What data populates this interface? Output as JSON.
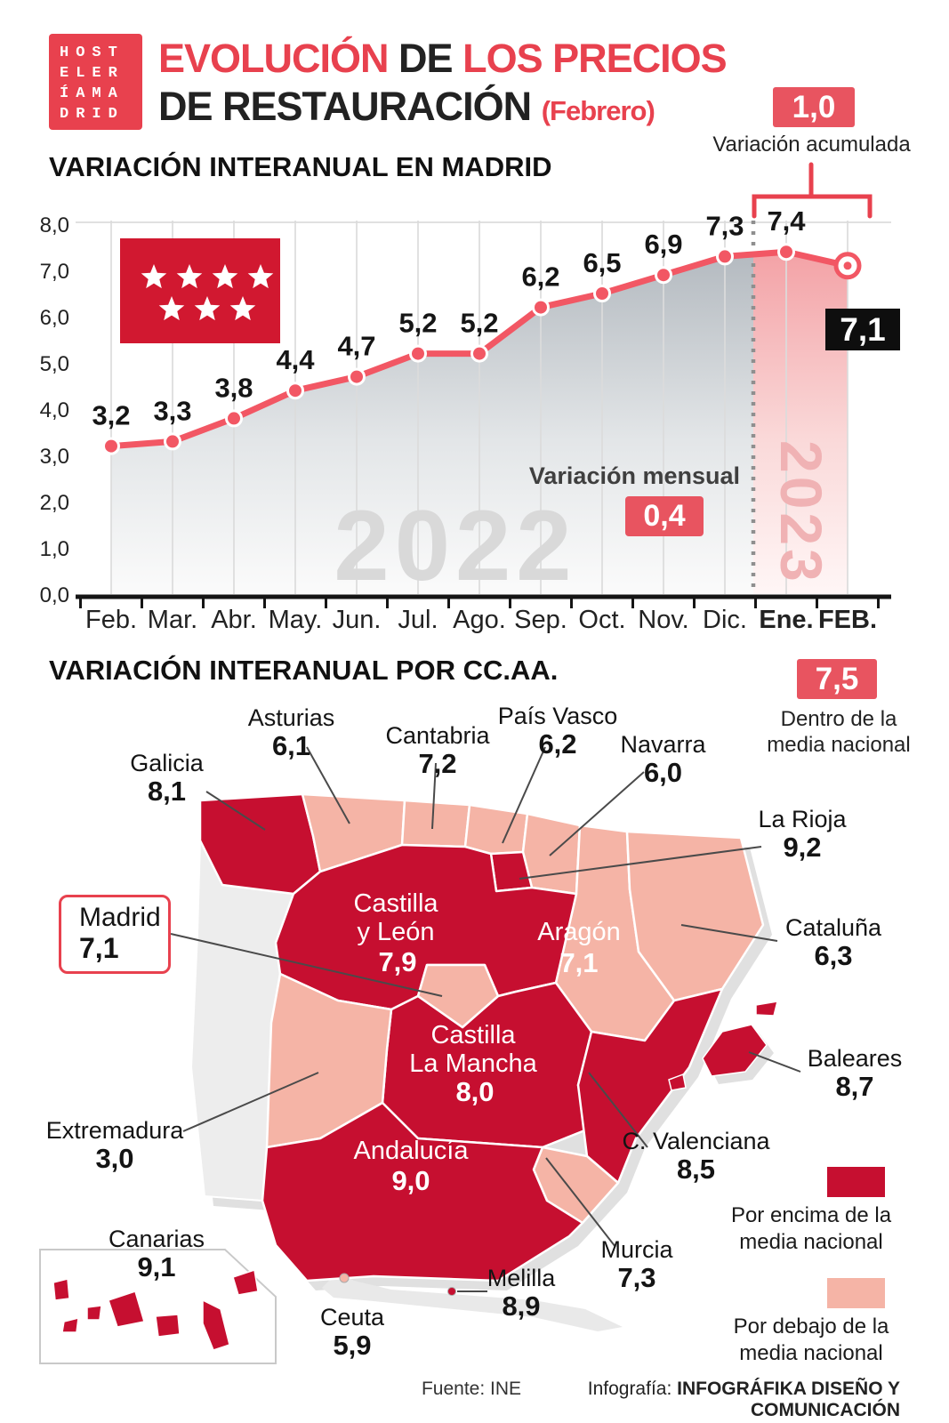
{
  "colors": {
    "accent_red": "#e8414e",
    "badge_red": "#e85460",
    "line_red": "#f25764",
    "flag_red": "#d11830",
    "map_above_color": "#c60f30",
    "map_below_color": "#f5b4a6"
  },
  "header": {
    "logo_rows": [
      "HOST",
      "ELER",
      "ÍAMA",
      "DRID"
    ],
    "title_red_1": "EVOLUCIÓN",
    "title_dark_1": "DE",
    "title_red_2": "LOS PRECIOS",
    "title_dark_2": "DE RESTAURACIÓN",
    "title_month": "(Febrero)"
  },
  "sections": {
    "accumulated_label": "Variación acumulada",
    "monthly_label": "Variación mensual",
    "national_label": "Dentro de la media nacional",
    "legend_above": "Por encima de la media nacional",
    "legend_below": "Por debajo de la media nacional"
  },
  "chart_data": [
    {
      "type": "line",
      "title": "VARIACIÓN INTERANUAL EN MADRID",
      "categories": [
        "Feb.",
        "Mar.",
        "Abr.",
        "May.",
        "Jun.",
        "Jul.",
        "Ago.",
        "Sep.",
        "Oct.",
        "Nov.",
        "Dic.",
        "Ene.",
        "FEB."
      ],
      "values": [
        3.2,
        3.3,
        3.8,
        4.4,
        4.7,
        5.2,
        5.2,
        6.2,
        6.5,
        6.9,
        7.3,
        7.4,
        7.1
      ],
      "point_labels": [
        "3,2",
        "3,3",
        "3,8",
        "4,4",
        "4,7",
        "5,2",
        "5,2",
        "6,2",
        "6,5",
        "6,9",
        "7,3",
        "7,4",
        "7,1"
      ],
      "ylim": [
        0,
        8
      ],
      "ytick_labels": [
        "0,0",
        "1,0",
        "2,0",
        "3,0",
        "4,0",
        "5,0",
        "6,0",
        "7,0",
        "8,0"
      ],
      "grid": true,
      "year_split_after_index": 10,
      "annotations": {
        "accumulated": "1,0",
        "monthly": "0,4",
        "final": "7,1",
        "year_left": "2022",
        "year_right": "2023"
      }
    },
    {
      "type": "heatmap",
      "title": "VARIACIÓN INTERANUAL POR CC.AA.",
      "national_average": "7,5",
      "regions": [
        {
          "name": "Galicia",
          "value": "8,1",
          "above_average": true
        },
        {
          "name": "Asturias",
          "value": "6,1",
          "above_average": false
        },
        {
          "name": "Cantabria",
          "value": "7,2",
          "above_average": false
        },
        {
          "name": "País Vasco",
          "value": "6,2",
          "above_average": false
        },
        {
          "name": "Navarra",
          "value": "6,0",
          "above_average": false
        },
        {
          "name": "La Rioja",
          "value": "9,2",
          "above_average": true
        },
        {
          "name": "Cataluña",
          "value": "6,3",
          "above_average": false
        },
        {
          "name": "Castilla y León",
          "value": "7,9",
          "above_average": true
        },
        {
          "name": "Aragón",
          "value": "7,1",
          "above_average": false
        },
        {
          "name": "Madrid",
          "value": "7,1",
          "above_average": false
        },
        {
          "name": "Castilla La Mancha",
          "value": "8,0",
          "above_average": true
        },
        {
          "name": "Extremadura",
          "value": "3,0",
          "above_average": false
        },
        {
          "name": "C. Valenciana",
          "value": "8,5",
          "above_average": true
        },
        {
          "name": "Murcia",
          "value": "7,3",
          "above_average": false
        },
        {
          "name": "Andalucía",
          "value": "9,0",
          "above_average": true
        },
        {
          "name": "Baleares",
          "value": "8,7",
          "above_average": true
        },
        {
          "name": "Canarias",
          "value": "9,1",
          "above_average": true
        },
        {
          "name": "Ceuta",
          "value": "5,9",
          "above_average": false
        },
        {
          "name": "Melilla",
          "value": "8,9",
          "above_average": true
        }
      ]
    }
  ],
  "footer": {
    "source": "Fuente: INE",
    "credit_prefix": "Infografía:",
    "credit_name": "INFOGRÁFIKA DISEÑO Y COMUNICACIÓN"
  }
}
